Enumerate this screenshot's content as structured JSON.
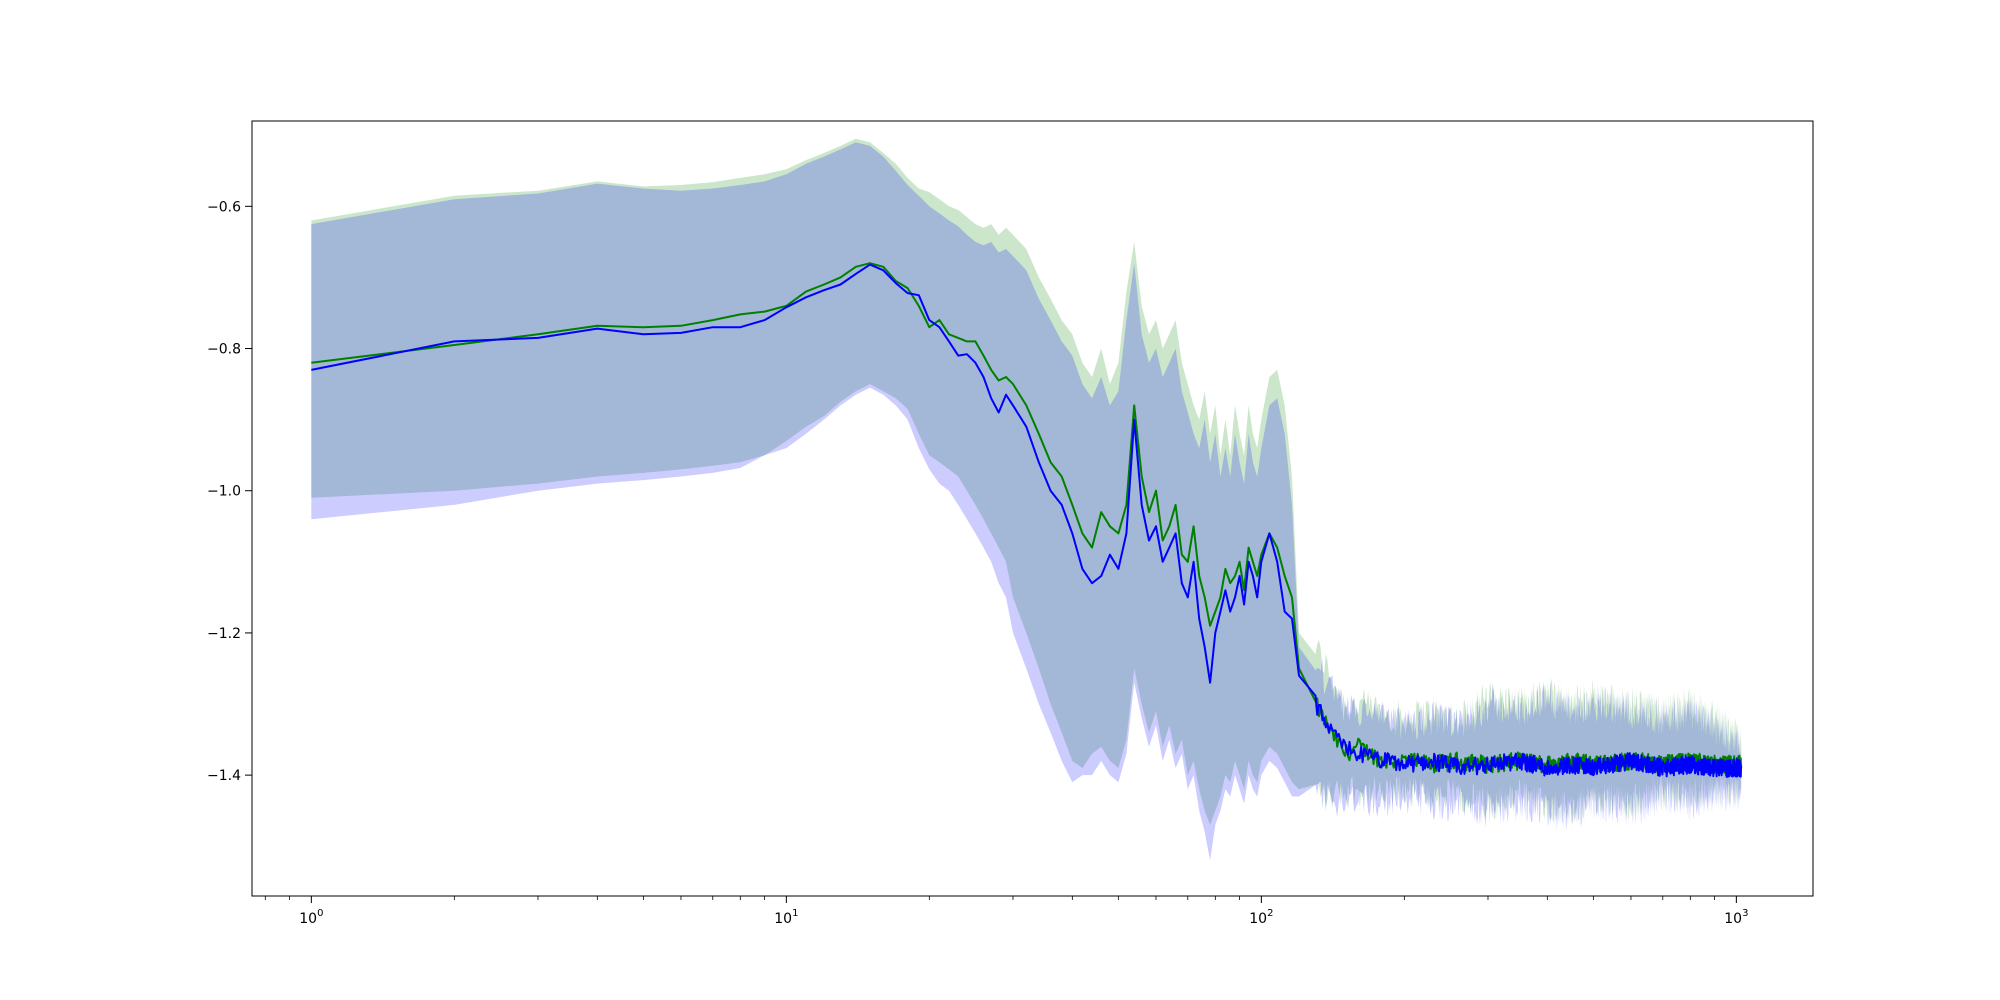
{
  "chart_data": {
    "type": "line",
    "title": "",
    "xlabel": "",
    "ylabel": "",
    "xscale": "log",
    "xlim": [
      0.75,
      1450
    ],
    "ylim": [
      -1.57,
      -0.48
    ],
    "grid": false,
    "legend": "none",
    "x_ticks": [
      {
        "value": 1,
        "base": "10",
        "exp": "0"
      },
      {
        "value": 10,
        "base": "10",
        "exp": "1"
      },
      {
        "value": 100,
        "base": "10",
        "exp": "2"
      },
      {
        "value": 1000,
        "base": "10",
        "exp": "3"
      }
    ],
    "y_ticks": [
      {
        "value": -0.6,
        "label": "−0.6"
      },
      {
        "value": -0.8,
        "label": "−0.8"
      },
      {
        "value": -1.0,
        "label": "−1.0"
      },
      {
        "value": -1.2,
        "label": "−1.2"
      },
      {
        "value": -1.4,
        "label": "−1.4"
      }
    ],
    "series": [
      {
        "color": "#008000",
        "band_color": "#008000",
        "band_opacity": 0.2,
        "x": [
          1,
          2,
          3,
          4,
          5,
          6,
          7,
          8,
          9,
          10,
          11,
          12,
          13,
          14,
          15,
          16,
          17,
          18,
          19,
          20,
          21,
          22,
          23,
          24,
          25,
          26,
          27,
          28,
          29,
          30,
          32,
          34,
          36,
          38,
          40,
          42,
          44,
          46,
          48,
          50,
          52,
          54,
          56,
          58,
          60,
          62,
          64,
          66,
          68,
          70,
          72,
          74,
          76,
          78,
          80,
          82,
          84,
          86,
          88,
          90,
          92,
          94,
          96,
          98,
          100,
          104,
          108,
          112,
          116,
          120,
          130,
          140,
          150,
          160,
          180,
          200,
          230,
          260,
          300,
          350,
          400,
          450,
          500,
          600,
          700,
          800,
          900,
          1024
        ],
        "mean": [
          -0.82,
          -0.795,
          -0.78,
          -0.768,
          -0.77,
          -0.768,
          -0.76,
          -0.752,
          -0.748,
          -0.74,
          -0.72,
          -0.71,
          -0.7,
          -0.685,
          -0.68,
          -0.685,
          -0.705,
          -0.715,
          -0.74,
          -0.77,
          -0.76,
          -0.78,
          -0.785,
          -0.79,
          -0.79,
          -0.81,
          -0.83,
          -0.845,
          -0.84,
          -0.85,
          -0.88,
          -0.92,
          -0.96,
          -0.98,
          -1.02,
          -1.06,
          -1.08,
          -1.03,
          -1.05,
          -1.06,
          -1.02,
          -0.88,
          -0.98,
          -1.03,
          -1.0,
          -1.07,
          -1.05,
          -1.02,
          -1.09,
          -1.1,
          -1.05,
          -1.12,
          -1.15,
          -1.19,
          -1.17,
          -1.15,
          -1.11,
          -1.13,
          -1.12,
          -1.1,
          -1.14,
          -1.08,
          -1.1,
          -1.12,
          -1.09,
          -1.06,
          -1.08,
          -1.12,
          -1.15,
          -1.25,
          -1.3,
          -1.34,
          -1.37,
          -1.36,
          -1.38,
          -1.38,
          -1.385,
          -1.38,
          -1.385,
          -1.38,
          -1.385,
          -1.38,
          -1.385,
          -1.38,
          -1.385,
          -1.38,
          -1.385,
          -1.385
        ],
        "upper": [
          -0.62,
          -0.585,
          -0.578,
          -0.565,
          -0.572,
          -0.57,
          -0.566,
          -0.56,
          -0.555,
          -0.548,
          -0.535,
          -0.525,
          -0.515,
          -0.505,
          -0.51,
          -0.525,
          -0.54,
          -0.56,
          -0.575,
          -0.58,
          -0.59,
          -0.6,
          -0.605,
          -0.615,
          -0.625,
          -0.63,
          -0.625,
          -0.64,
          -0.63,
          -0.64,
          -0.66,
          -0.7,
          -0.73,
          -0.76,
          -0.78,
          -0.82,
          -0.84,
          -0.8,
          -0.85,
          -0.82,
          -0.72,
          -0.65,
          -0.74,
          -0.78,
          -0.76,
          -0.8,
          -0.78,
          -0.76,
          -0.82,
          -0.85,
          -0.88,
          -0.9,
          -0.86,
          -0.92,
          -0.88,
          -0.95,
          -0.9,
          -0.95,
          -0.88,
          -0.92,
          -0.95,
          -0.88,
          -0.92,
          -0.94,
          -0.9,
          -0.84,
          -0.83,
          -0.88,
          -0.98,
          -1.2,
          -1.22,
          -1.26,
          -1.3,
          -1.3,
          -1.31,
          -1.32,
          -1.31,
          -1.32,
          -1.29,
          -1.3,
          -1.28,
          -1.3,
          -1.29,
          -1.3,
          -1.31,
          -1.3,
          -1.32,
          -1.35
        ],
        "lower": [
          -1.01,
          -1.0,
          -0.99,
          -0.98,
          -0.975,
          -0.97,
          -0.965,
          -0.96,
          -0.95,
          -0.93,
          -0.91,
          -0.895,
          -0.875,
          -0.86,
          -0.85,
          -0.86,
          -0.87,
          -0.885,
          -0.92,
          -0.95,
          -0.96,
          -0.97,
          -0.98,
          -1.0,
          -1.02,
          -1.04,
          -1.06,
          -1.08,
          -1.1,
          -1.15,
          -1.2,
          -1.25,
          -1.3,
          -1.34,
          -1.38,
          -1.39,
          -1.37,
          -1.36,
          -1.38,
          -1.39,
          -1.35,
          -1.25,
          -1.3,
          -1.34,
          -1.31,
          -1.36,
          -1.33,
          -1.37,
          -1.35,
          -1.4,
          -1.38,
          -1.42,
          -1.45,
          -1.47,
          -1.45,
          -1.43,
          -1.4,
          -1.41,
          -1.38,
          -1.4,
          -1.42,
          -1.38,
          -1.4,
          -1.41,
          -1.38,
          -1.36,
          -1.37,
          -1.39,
          -1.41,
          -1.42,
          -1.42,
          -1.43,
          -1.42,
          -1.42,
          -1.43,
          -1.42,
          -1.43,
          -1.43,
          -1.44,
          -1.43,
          -1.44,
          -1.45,
          -1.43,
          -1.44,
          -1.42,
          -1.43,
          -1.42,
          -1.42
        ]
      },
      {
        "color": "#0000ff",
        "band_color": "#0000ff",
        "band_opacity": 0.2,
        "x": [
          1,
          2,
          3,
          4,
          5,
          6,
          7,
          8,
          9,
          10,
          11,
          12,
          13,
          14,
          15,
          16,
          17,
          18,
          19,
          20,
          21,
          22,
          23,
          24,
          25,
          26,
          27,
          28,
          29,
          30,
          32,
          34,
          36,
          38,
          40,
          42,
          44,
          46,
          48,
          50,
          52,
          54,
          56,
          58,
          60,
          62,
          64,
          66,
          68,
          70,
          72,
          74,
          76,
          78,
          80,
          82,
          84,
          86,
          88,
          90,
          92,
          94,
          96,
          98,
          100,
          104,
          108,
          112,
          116,
          120,
          130,
          140,
          150,
          160,
          180,
          200,
          230,
          260,
          300,
          350,
          400,
          450,
          500,
          600,
          700,
          800,
          900,
          1024
        ],
        "mean": [
          -0.83,
          -0.79,
          -0.785,
          -0.772,
          -0.78,
          -0.778,
          -0.77,
          -0.77,
          -0.76,
          -0.742,
          -0.728,
          -0.718,
          -0.71,
          -0.695,
          -0.682,
          -0.69,
          -0.708,
          -0.722,
          -0.725,
          -0.76,
          -0.77,
          -0.79,
          -0.81,
          -0.808,
          -0.82,
          -0.84,
          -0.87,
          -0.89,
          -0.865,
          -0.88,
          -0.91,
          -0.96,
          -1.0,
          -1.02,
          -1.06,
          -1.11,
          -1.13,
          -1.12,
          -1.09,
          -1.11,
          -1.06,
          -0.9,
          -1.02,
          -1.07,
          -1.05,
          -1.1,
          -1.08,
          -1.06,
          -1.13,
          -1.15,
          -1.1,
          -1.18,
          -1.22,
          -1.27,
          -1.2,
          -1.17,
          -1.14,
          -1.17,
          -1.15,
          -1.12,
          -1.16,
          -1.1,
          -1.12,
          -1.15,
          -1.1,
          -1.06,
          -1.1,
          -1.17,
          -1.18,
          -1.26,
          -1.3,
          -1.34,
          -1.36,
          -1.37,
          -1.38,
          -1.385,
          -1.38,
          -1.39,
          -1.385,
          -1.38,
          -1.39,
          -1.385,
          -1.39,
          -1.38,
          -1.39,
          -1.385,
          -1.39,
          -1.39
        ],
        "upper": [
          -0.625,
          -0.59,
          -0.582,
          -0.568,
          -0.575,
          -0.578,
          -0.575,
          -0.57,
          -0.565,
          -0.555,
          -0.54,
          -0.53,
          -0.52,
          -0.51,
          -0.515,
          -0.53,
          -0.55,
          -0.57,
          -0.585,
          -0.6,
          -0.61,
          -0.62,
          -0.628,
          -0.64,
          -0.65,
          -0.655,
          -0.65,
          -0.665,
          -0.66,
          -0.67,
          -0.69,
          -0.73,
          -0.76,
          -0.79,
          -0.81,
          -0.85,
          -0.87,
          -0.84,
          -0.88,
          -0.86,
          -0.76,
          -0.68,
          -0.78,
          -0.82,
          -0.8,
          -0.84,
          -0.82,
          -0.8,
          -0.86,
          -0.89,
          -0.92,
          -0.94,
          -0.9,
          -0.96,
          -0.92,
          -0.98,
          -0.94,
          -0.98,
          -0.92,
          -0.96,
          -0.99,
          -0.92,
          -0.96,
          -0.98,
          -0.94,
          -0.88,
          -0.87,
          -0.92,
          -1.02,
          -1.22,
          -1.24,
          -1.28,
          -1.31,
          -1.31,
          -1.32,
          -1.33,
          -1.32,
          -1.33,
          -1.3,
          -1.31,
          -1.29,
          -1.31,
          -1.3,
          -1.31,
          -1.32,
          -1.31,
          -1.33,
          -1.36
        ],
        "lower": [
          -1.04,
          -1.02,
          -1.0,
          -0.99,
          -0.985,
          -0.98,
          -0.975,
          -0.968,
          -0.95,
          -0.94,
          -0.92,
          -0.9,
          -0.88,
          -0.865,
          -0.855,
          -0.865,
          -0.88,
          -0.9,
          -0.94,
          -0.97,
          -0.99,
          -1.0,
          -1.02,
          -1.04,
          -1.06,
          -1.08,
          -1.1,
          -1.13,
          -1.15,
          -1.2,
          -1.25,
          -1.3,
          -1.34,
          -1.38,
          -1.41,
          -1.4,
          -1.4,
          -1.38,
          -1.4,
          -1.41,
          -1.37,
          -1.27,
          -1.32,
          -1.36,
          -1.33,
          -1.38,
          -1.35,
          -1.39,
          -1.37,
          -1.42,
          -1.4,
          -1.45,
          -1.48,
          -1.52,
          -1.47,
          -1.45,
          -1.42,
          -1.43,
          -1.4,
          -1.42,
          -1.44,
          -1.4,
          -1.42,
          -1.43,
          -1.4,
          -1.38,
          -1.39,
          -1.41,
          -1.43,
          -1.43,
          -1.43,
          -1.44,
          -1.43,
          -1.43,
          -1.44,
          -1.43,
          -1.44,
          -1.44,
          -1.45,
          -1.44,
          -1.45,
          -1.46,
          -1.44,
          -1.45,
          -1.43,
          -1.44,
          -1.43,
          -1.43
        ]
      }
    ]
  }
}
